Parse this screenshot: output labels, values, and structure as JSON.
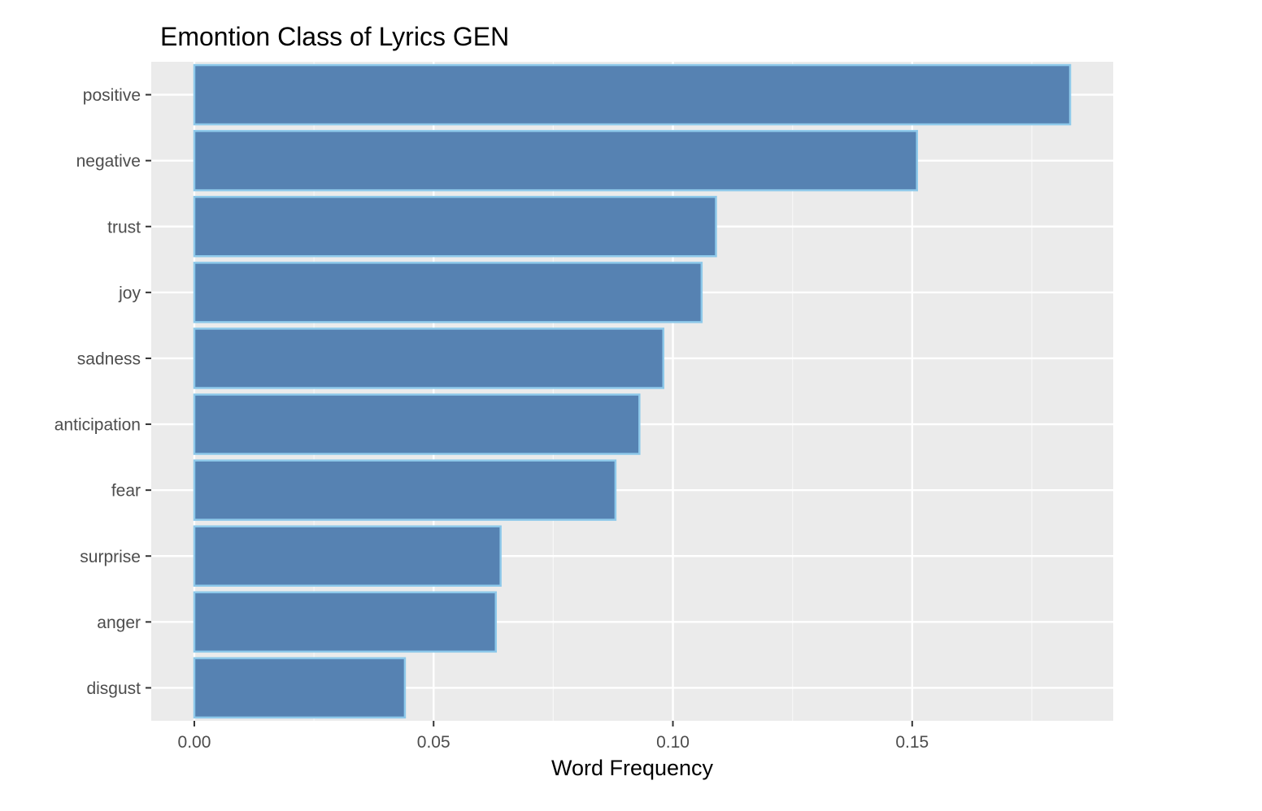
{
  "chart_data": {
    "type": "bar",
    "orientation": "horizontal",
    "title": "Emontion Class of Lyrics GEN",
    "xlabel": "Word Frequency",
    "ylabel": "",
    "categories": [
      "positive",
      "negative",
      "trust",
      "joy",
      "sadness",
      "anticipation",
      "fear",
      "surprise",
      "anger",
      "disgust"
    ],
    "values": [
      0.183,
      0.151,
      0.109,
      0.106,
      0.098,
      0.093,
      0.088,
      0.064,
      0.063,
      0.044
    ],
    "xlim": [
      -0.009,
      0.192
    ],
    "xticks": [
      0,
      0.05,
      0.1,
      0.15
    ],
    "xtick_labels": [
      "0.00",
      "0.05",
      "0.10",
      "0.15"
    ],
    "grid": true,
    "legend": "none",
    "colors": {
      "bar_fill": "#5682b2",
      "bar_outline": "#8ec9ea",
      "panel_background": "#ebebeb",
      "grid_major": "#ffffff",
      "grid_minor": "#f7f7f7",
      "tick_text": "#4d4d4d",
      "tick_mark": "#333333",
      "title_text": "#000000"
    }
  }
}
